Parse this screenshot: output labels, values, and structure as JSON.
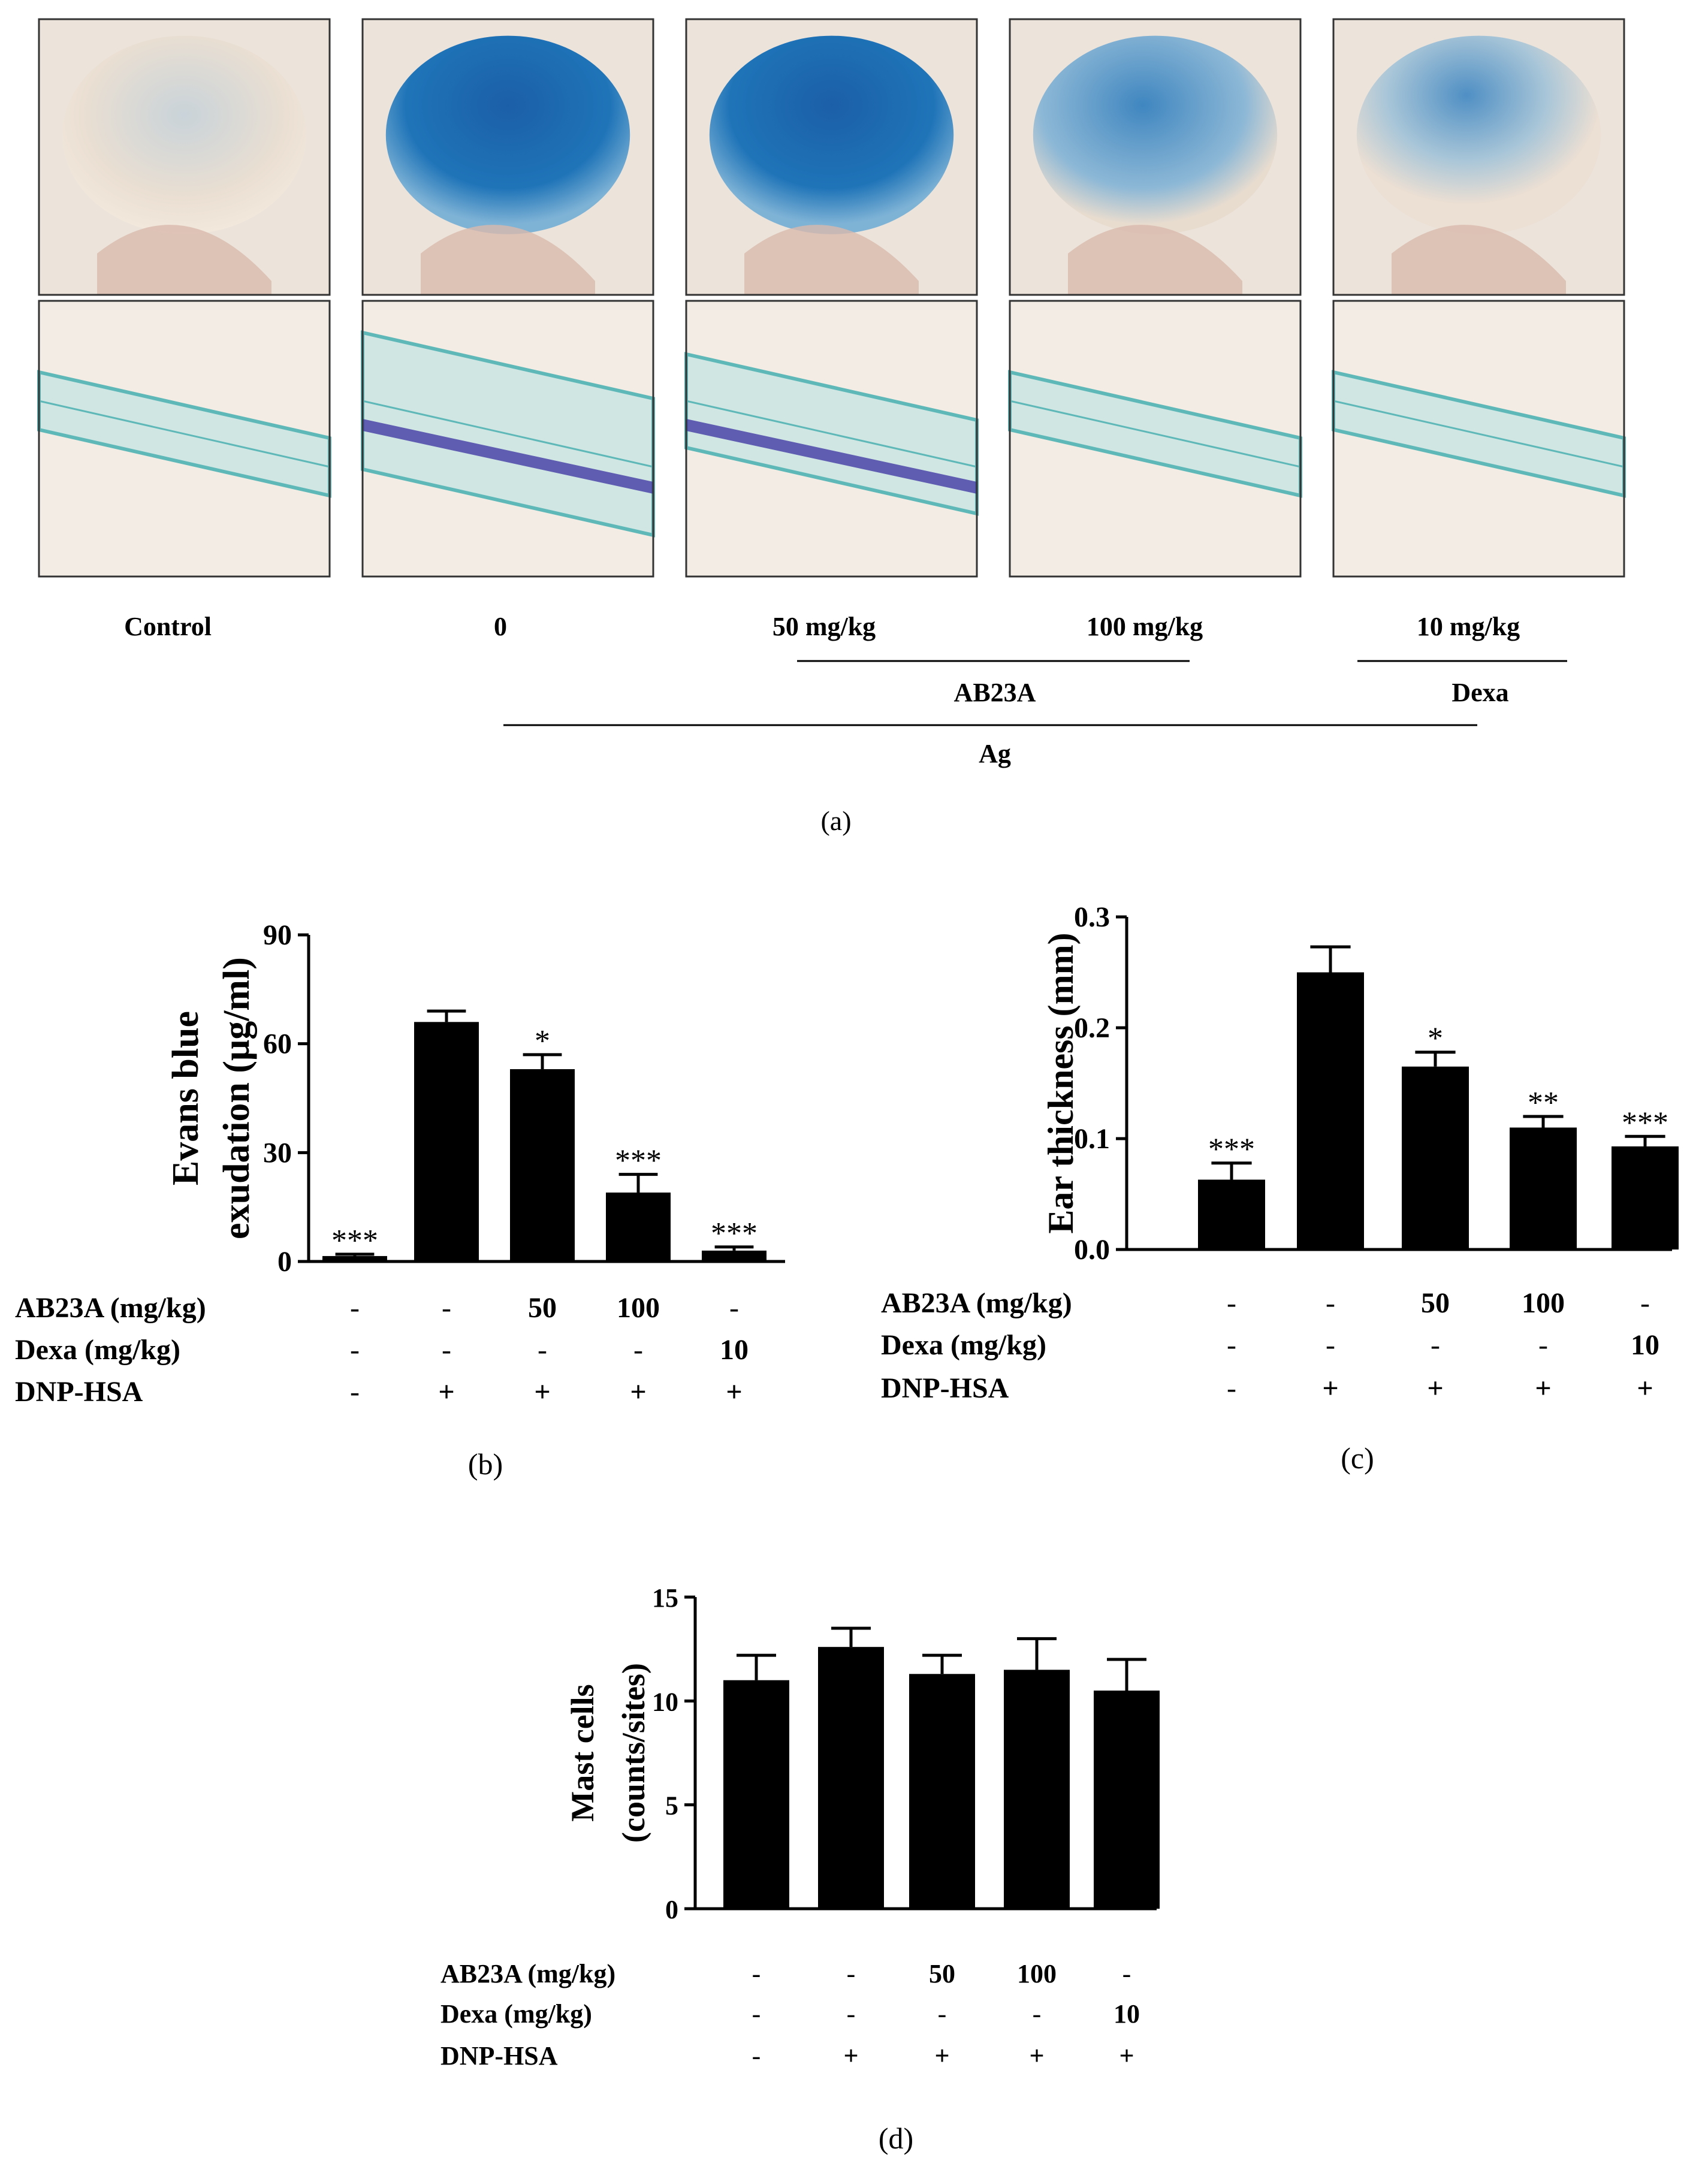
{
  "panel_a": {
    "columns": [
      {
        "label": "Control",
        "photo": "ear-photo-faint-blue",
        "histo": "histology-thin-section"
      },
      {
        "label": "0",
        "photo": "ear-photo-dark-blue",
        "histo": "histology-thick-section"
      },
      {
        "label": "50 mg/kg",
        "photo": "ear-photo-dark-blue",
        "histo": "histology-medium-section"
      },
      {
        "label": "100 mg/kg",
        "photo": "ear-photo-medium-blue",
        "histo": "histology-thin-section"
      },
      {
        "label": "10 mg/kg",
        "photo": "ear-photo-light-blue",
        "histo": "histology-thin-section"
      }
    ],
    "group_ab23a": "AB23A",
    "group_dexa": "Dexa",
    "group_ag": "Ag",
    "caption": "(a)",
    "colors": {
      "dye": "#1f6fb0",
      "skin": "#e8d8cc",
      "stain": "#5fb8b8",
      "cells": "#3a2fa0"
    }
  },
  "treatment_rows": {
    "labels": [
      "AB23A (mg/kg)",
      "Dexa (mg/kg)",
      "DNP-HSA"
    ],
    "values": [
      [
        "-",
        "-",
        "50",
        "100",
        "-"
      ],
      [
        "-",
        "-",
        "-",
        "-",
        "10"
      ],
      [
        "-",
        "+",
        "+",
        "+",
        "+"
      ]
    ]
  },
  "chart_data": [
    {
      "id": "b",
      "type": "bar",
      "caption": "(b)",
      "ylabel_lines": [
        "Evans blue",
        "exudation (μg/ml)"
      ],
      "ylim": [
        0,
        90
      ],
      "yticks": [
        "0",
        "30",
        "60",
        "90"
      ],
      "values": [
        1.5,
        66,
        53,
        19,
        3
      ],
      "errors": [
        0.5,
        3,
        4,
        5,
        1
      ],
      "significance": [
        "***",
        "",
        "*",
        "***",
        "***"
      ]
    },
    {
      "id": "c",
      "type": "bar",
      "caption": "(c)",
      "ylabel_lines": [
        "Ear thickness (mm)"
      ],
      "ylim": [
        0,
        0.3
      ],
      "yticks": [
        "0.0",
        "0.1",
        "0.2",
        "0.3"
      ],
      "values": [
        0.063,
        0.25,
        0.165,
        0.11,
        0.093
      ],
      "errors": [
        0.015,
        0.023,
        0.013,
        0.01,
        0.009
      ],
      "significance": [
        "***",
        "",
        "*",
        "**",
        "***"
      ]
    },
    {
      "id": "d",
      "type": "bar",
      "caption": "(d)",
      "ylabel_lines": [
        "Mast cells",
        "(counts/sites)"
      ],
      "ylim": [
        0,
        15
      ],
      "yticks": [
        "0",
        "5",
        "10",
        "15"
      ],
      "values": [
        11,
        12.6,
        11.3,
        11.5,
        10.5
      ],
      "errors": [
        1.2,
        0.9,
        0.9,
        1.5,
        1.5
      ],
      "significance": [
        "",
        "",
        "",
        "",
        ""
      ]
    }
  ]
}
